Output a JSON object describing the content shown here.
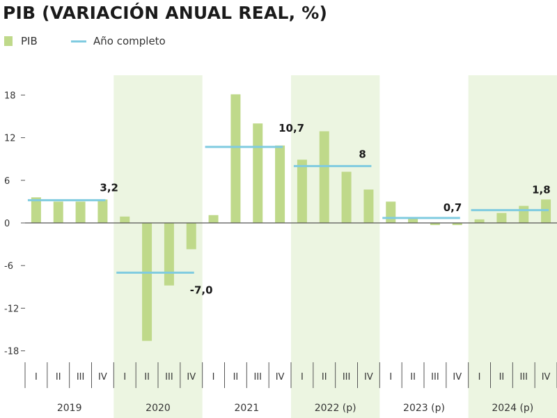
{
  "title": "PIB (VARIACIÓN ANUAL REAL, %)",
  "legend": {
    "bar_label": "PIB",
    "line_label": "Año completo"
  },
  "colors": {
    "bar": "#bfd98a",
    "line": "#7fcbe0",
    "band": "#ecf5e1",
    "axis": "#555555"
  },
  "chart_data": {
    "type": "bar",
    "title": "PIB (VARIACIÓN ANUAL REAL, %)",
    "ylim": [
      -21,
      21
    ],
    "yticks": [
      18,
      12,
      6,
      0,
      -6,
      -12,
      -18
    ],
    "ytick_labels": [
      "18",
      "12",
      "6",
      "0",
      "-6",
      "-12",
      "-18"
    ],
    "quarter_labels": [
      "I",
      "II",
      "III",
      "IV"
    ],
    "years": [
      {
        "label": "2019",
        "shaded": false,
        "quarters": [
          3.6,
          3.0,
          3.0,
          3.3
        ],
        "annual": 3.2,
        "annual_label": "3,2"
      },
      {
        "label": "2020",
        "shaded": true,
        "quarters": [
          0.9,
          -16.6,
          -8.8,
          -3.7
        ],
        "annual": -7.0,
        "annual_label": "-7,0"
      },
      {
        "label": "2021",
        "shaded": false,
        "quarters": [
          1.1,
          18.1,
          14.0,
          10.9
        ],
        "annual": 10.7,
        "annual_label": "10,7"
      },
      {
        "label": "2022 (p)",
        "shaded": true,
        "quarters": [
          8.9,
          12.9,
          7.2,
          4.7
        ],
        "annual": 8.0,
        "annual_label": "8"
      },
      {
        "label": "2023 (p)",
        "shaded": false,
        "quarters": [
          3.0,
          0.6,
          -0.3,
          -0.3
        ],
        "annual": 0.7,
        "annual_label": "0,7"
      },
      {
        "label": "2024 (p)",
        "shaded": true,
        "quarters": [
          0.5,
          1.4,
          2.4,
          3.3
        ],
        "annual": 1.8,
        "annual_label": "1,8"
      }
    ],
    "series": [
      {
        "name": "PIB",
        "kind": "bar"
      },
      {
        "name": "Año completo",
        "kind": "line"
      }
    ],
    "grid": false,
    "legend_position": "top-left"
  }
}
